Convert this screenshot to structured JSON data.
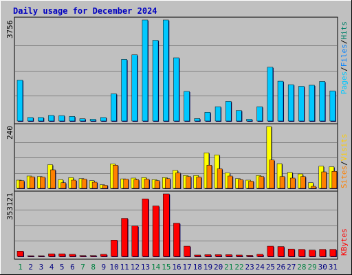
{
  "title": "Daily usage for December 2024",
  "colors": {
    "frame": "#c0c0c0",
    "plot_bg": "#c0c0c0",
    "grid": "#808080",
    "title": "#0000c0",
    "pages": "#00c8ff",
    "files": "#0080ff",
    "hits": "#00806a",
    "visits": "#ff8000",
    "sites": "#ffff00",
    "kbytes": "#ff0000",
    "shadow": "#000060",
    "weekday": "#000080",
    "weekend": "#008040"
  },
  "chart_data": [
    {
      "type": "bar",
      "panel": "hits-files-pages",
      "max_label": "3756",
      "ylim": [
        0,
        3756
      ],
      "legend": [
        "Pages",
        "Files",
        "Hits"
      ],
      "categories": [
        "1",
        "2",
        "3",
        "4",
        "5",
        "6",
        "7",
        "8",
        "9",
        "10",
        "11",
        "12",
        "13",
        "14",
        "15",
        "16",
        "17",
        "18",
        "19",
        "20",
        "21",
        "22",
        "23",
        "24",
        "25",
        "26",
        "27",
        "28",
        "29",
        "30",
        "31"
      ],
      "weekend_days": [
        "1",
        "7",
        "8",
        "14",
        "15",
        "21",
        "22",
        "28",
        "29"
      ],
      "series": [
        {
          "name": "Pages",
          "values": [
            1520,
            130,
            130,
            210,
            200,
            170,
            85,
            65,
            130,
            1010,
            2290,
            2460,
            3756,
            3000,
            3756,
            2350,
            1100,
            90,
            325,
            530,
            730,
            390,
            65,
            530,
            2000,
            1480,
            1350,
            1290,
            1330,
            1470,
            1120
          ]
        }
      ]
    },
    {
      "type": "bar",
      "panel": "visits-sites",
      "max_label": "240",
      "ylim": [
        0,
        240
      ],
      "legend": [
        "Sites",
        "Visits"
      ],
      "categories": [
        "1",
        "2",
        "3",
        "4",
        "5",
        "6",
        "7",
        "8",
        "9",
        "10",
        "11",
        "12",
        "13",
        "14",
        "15",
        "16",
        "17",
        "18",
        "19",
        "20",
        "21",
        "22",
        "23",
        "24",
        "25",
        "26",
        "27",
        "28",
        "29",
        "30",
        "31"
      ],
      "series": [
        {
          "name": "Sites",
          "values": [
            32,
            48,
            46,
            92,
            34,
            42,
            38,
            30,
            14,
            95,
            37,
            40,
            42,
            34,
            42,
            70,
            50,
            50,
            138,
            130,
            60,
            38,
            32,
            50,
            240,
            96,
            62,
            56,
            22,
            86,
            84
          ]
        },
        {
          "name": "Visits",
          "values": [
            30,
            45,
            44,
            72,
            22,
            32,
            36,
            24,
            12,
            90,
            36,
            34,
            36,
            30,
            38,
            60,
            46,
            44,
            90,
            76,
            48,
            34,
            28,
            46,
            110,
            46,
            40,
            46,
            8,
            64,
            66
          ]
        }
      ]
    },
    {
      "type": "bar",
      "panel": "kbytes",
      "max_label": "353121",
      "ylim": [
        0,
        353121
      ],
      "legend": [
        "KBytes"
      ],
      "categories": [
        "1",
        "2",
        "3",
        "4",
        "5",
        "6",
        "7",
        "8",
        "9",
        "10",
        "11",
        "12",
        "13",
        "14",
        "15",
        "16",
        "17",
        "18",
        "19",
        "20",
        "21",
        "22",
        "23",
        "24",
        "25",
        "26",
        "27",
        "28",
        "29",
        "30",
        "31"
      ],
      "series": [
        {
          "name": "KBytes",
          "values": [
            30000,
            4000,
            4000,
            15000,
            15000,
            12000,
            5000,
            5000,
            12000,
            92000,
            215000,
            172000,
            325000,
            285000,
            353121,
            188000,
            58000,
            8000,
            10000,
            10000,
            10000,
            8000,
            6000,
            12000,
            58000,
            56000,
            42000,
            40000,
            36000,
            40000,
            40000
          ]
        }
      ]
    }
  ]
}
